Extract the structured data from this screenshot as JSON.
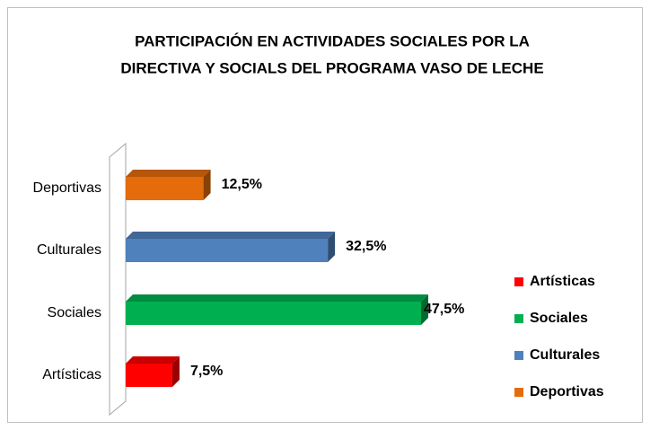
{
  "chart_data": {
    "type": "bar3d-horizontal",
    "title": [
      "PARTICIPACIÓN EN ACTIVIDADES SOCIALES POR LA",
      "DIRECTIVA Y SOCIALS DEL PROGRAMA VASO DE LECHE"
    ],
    "categories": [
      "Artísticas",
      "Sociales",
      "Culturales",
      "Deportivas"
    ],
    "values": [
      7.5,
      47.5,
      32.5,
      12.5
    ],
    "value_labels": [
      "7,5%",
      "47,5%",
      "32,5%",
      "12,5%"
    ],
    "colors": [
      "#ff0000",
      "#00b050",
      "#4f81bd",
      "#e46c0a"
    ],
    "legend": "right"
  }
}
